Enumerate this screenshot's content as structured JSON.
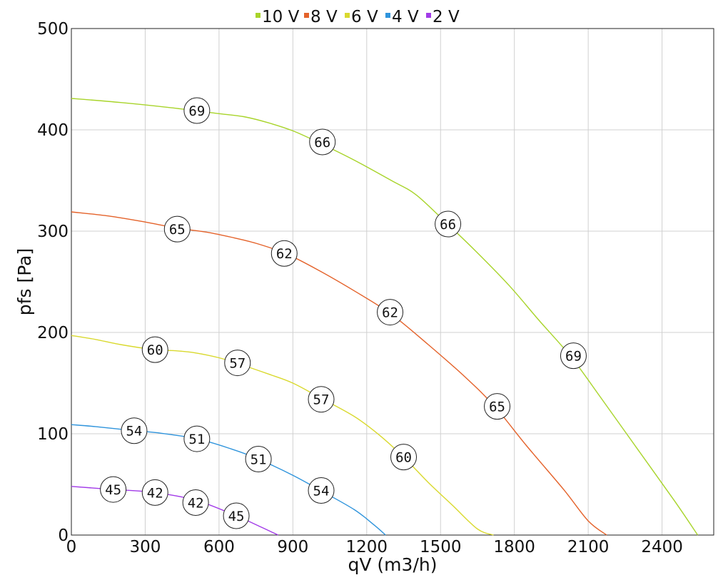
{
  "chart_data": {
    "type": "line",
    "xlabel": "qV (m3/h)",
    "ylabel": "pfs [Pa]",
    "xlim": [
      0,
      2610
    ],
    "ylim": [
      0,
      500
    ],
    "x_ticks": [
      0,
      300,
      600,
      900,
      1200,
      1500,
      1800,
      2100,
      2400
    ],
    "y_ticks": [
      0,
      100,
      200,
      300,
      400,
      500
    ],
    "grid": true,
    "legend_position": "top-center",
    "series": [
      {
        "name": "10 V",
        "color": "#a8d42a",
        "points": [
          [
            0,
            431
          ],
          [
            200,
            427
          ],
          [
            400,
            422
          ],
          [
            600,
            416
          ],
          [
            700,
            413
          ],
          [
            800,
            407
          ],
          [
            900,
            399
          ],
          [
            1000,
            388
          ],
          [
            1150,
            370
          ],
          [
            1300,
            350
          ],
          [
            1400,
            336
          ],
          [
            1520,
            309
          ],
          [
            1640,
            281
          ],
          [
            1780,
            246
          ],
          [
            1900,
            212
          ],
          [
            2030,
            176
          ],
          [
            2150,
            136
          ],
          [
            2300,
            85
          ],
          [
            2450,
            34
          ],
          [
            2545,
            0
          ]
        ],
        "labels": [
          {
            "x": 510,
            "y": 419,
            "text": "69"
          },
          {
            "x": 1020,
            "y": 388,
            "text": "66"
          },
          {
            "x": 1530,
            "y": 307,
            "text": "66"
          },
          {
            "x": 2040,
            "y": 177,
            "text": "69"
          }
        ]
      },
      {
        "name": "8 V",
        "color": "#e4622a",
        "points": [
          [
            0,
            319
          ],
          [
            150,
            315
          ],
          [
            300,
            309
          ],
          [
            430,
            303
          ],
          [
            550,
            299
          ],
          [
            650,
            294
          ],
          [
            750,
            288
          ],
          [
            870,
            278
          ],
          [
            1000,
            262
          ],
          [
            1150,
            241
          ],
          [
            1300,
            218
          ],
          [
            1450,
            188
          ],
          [
            1600,
            156
          ],
          [
            1720,
            127
          ],
          [
            1850,
            88
          ],
          [
            2000,
            45
          ],
          [
            2100,
            14
          ],
          [
            2175,
            0
          ]
        ],
        "labels": [
          {
            "x": 430,
            "y": 302,
            "text": "65"
          },
          {
            "x": 865,
            "y": 278,
            "text": "62"
          },
          {
            "x": 1295,
            "y": 220,
            "text": "62"
          },
          {
            "x": 1730,
            "y": 127,
            "text": "65"
          }
        ]
      },
      {
        "name": "6 V",
        "color": "#d9d92e",
        "points": [
          [
            0,
            197
          ],
          [
            100,
            193
          ],
          [
            200,
            188
          ],
          [
            340,
            183
          ],
          [
            420,
            182
          ],
          [
            500,
            180
          ],
          [
            600,
            175
          ],
          [
            680,
            169
          ],
          [
            800,
            159
          ],
          [
            900,
            150
          ],
          [
            1015,
            135
          ],
          [
            1150,
            117
          ],
          [
            1250,
            99
          ],
          [
            1350,
            77
          ],
          [
            1450,
            52
          ],
          [
            1550,
            29
          ],
          [
            1650,
            6
          ],
          [
            1715,
            0
          ]
        ],
        "labels": [
          {
            "x": 340,
            "y": 183,
            "text": "60"
          },
          {
            "x": 675,
            "y": 170,
            "text": "57"
          },
          {
            "x": 1015,
            "y": 134,
            "text": "57"
          },
          {
            "x": 1350,
            "y": 77,
            "text": "60"
          }
        ]
      },
      {
        "name": "4 V",
        "color": "#2f94dc",
        "points": [
          [
            0,
            109
          ],
          [
            100,
            107
          ],
          [
            255,
            103
          ],
          [
            350,
            101
          ],
          [
            510,
            95
          ],
          [
            650,
            85
          ],
          [
            760,
            75
          ],
          [
            900,
            59
          ],
          [
            1020,
            43
          ],
          [
            1150,
            25
          ],
          [
            1230,
            10
          ],
          [
            1277,
            0
          ]
        ],
        "labels": [
          {
            "x": 255,
            "y": 103,
            "text": "54"
          },
          {
            "x": 510,
            "y": 95,
            "text": "51"
          },
          {
            "x": 760,
            "y": 75,
            "text": "51"
          },
          {
            "x": 1015,
            "y": 44,
            "text": "54"
          }
        ]
      },
      {
        "name": "2 V",
        "color": "#a23be8",
        "points": [
          [
            0,
            48
          ],
          [
            170,
            45
          ],
          [
            340,
            42
          ],
          [
            510,
            34
          ],
          [
            670,
            19
          ],
          [
            770,
            8
          ],
          [
            840,
            0
          ]
        ],
        "labels": [
          {
            "x": 170,
            "y": 45,
            "text": "45"
          },
          {
            "x": 340,
            "y": 42,
            "text": "42"
          },
          {
            "x": 505,
            "y": 32,
            "text": "42"
          },
          {
            "x": 670,
            "y": 19,
            "text": "45"
          }
        ]
      }
    ]
  }
}
